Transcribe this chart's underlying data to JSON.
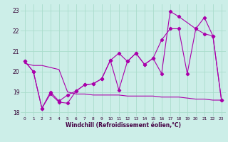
{
  "xlabel": "Windchill (Refroidissement éolien,°C)",
  "xlim": [
    -0.5,
    23.5
  ],
  "ylim": [
    17.8,
    23.3
  ],
  "yticks": [
    18,
    19,
    20,
    21,
    22,
    23
  ],
  "xticks": [
    0,
    1,
    2,
    3,
    4,
    5,
    6,
    7,
    8,
    9,
    10,
    11,
    12,
    13,
    14,
    15,
    16,
    17,
    18,
    19,
    20,
    21,
    22,
    23
  ],
  "bg_color": "#cceee8",
  "grid_color": "#aaddcc",
  "line_color": "#aa00aa",
  "line1_x": [
    0,
    1,
    2,
    3,
    4,
    5,
    6,
    7,
    8,
    9,
    10,
    11,
    12,
    13,
    14,
    15,
    16,
    17,
    18,
    20,
    21,
    22,
    23
  ],
  "line1_y": [
    20.5,
    20.0,
    18.2,
    18.9,
    18.5,
    18.45,
    19.05,
    19.35,
    19.4,
    19.65,
    20.55,
    19.1,
    20.5,
    20.9,
    20.35,
    20.65,
    19.9,
    22.95,
    22.7,
    22.1,
    21.85,
    21.75,
    18.6
  ],
  "line2_x": [
    0,
    1,
    2,
    3,
    4,
    5,
    6,
    7,
    8,
    9,
    10,
    11,
    12,
    13,
    14,
    15,
    16,
    17,
    18,
    19,
    20,
    21,
    22,
    23
  ],
  "line2_y": [
    20.5,
    20.0,
    18.2,
    19.0,
    18.55,
    18.85,
    19.05,
    19.35,
    19.4,
    19.65,
    20.55,
    20.9,
    20.5,
    20.9,
    20.35,
    20.65,
    21.55,
    22.1,
    22.1,
    19.9,
    22.1,
    22.65,
    21.75,
    18.6
  ],
  "line3_x": [
    0,
    1,
    2,
    3,
    4,
    5,
    6,
    7,
    8,
    9,
    10,
    11,
    12,
    13,
    14,
    15,
    16,
    17,
    18,
    19,
    20,
    21,
    22,
    23
  ],
  "line3_y": [
    20.4,
    20.3,
    20.3,
    20.2,
    20.1,
    19.0,
    18.9,
    18.9,
    18.85,
    18.85,
    18.85,
    18.85,
    18.8,
    18.8,
    18.8,
    18.8,
    18.75,
    18.75,
    18.75,
    18.7,
    18.65,
    18.65,
    18.6,
    18.6
  ]
}
